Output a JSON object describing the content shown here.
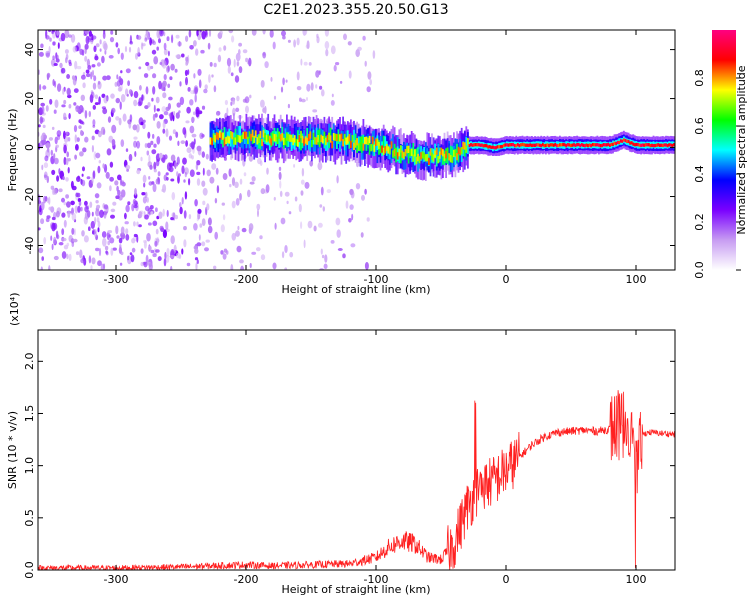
{
  "title": "C2E1.2023.355.20.50.G13",
  "chart_data": [
    {
      "type": "heatmap",
      "xlabel": "Height of straight line (km)",
      "ylabel": "Frequency (Hz)",
      "xlim": [
        -360,
        130
      ],
      "ylim": [
        -50,
        48
      ],
      "xticks": [
        -300,
        -200,
        -100,
        0,
        100
      ],
      "yticks": [
        -40,
        -20,
        0,
        20,
        40
      ],
      "colorbar": {
        "label": "Normalized spectral amplitude",
        "range": [
          0.0,
          1.0
        ],
        "ticks": [
          "0.0",
          "0.2",
          "0.4",
          "0.6",
          "0.8"
        ],
        "colors": [
          "#ffffff",
          "#c79cf2",
          "#7a00ff",
          "#0000ff",
          "#00ffff",
          "#00ff00",
          "#ffff00",
          "#ff0000",
          "#ff0080"
        ]
      },
      "ridge": {
        "x": [
          -228,
          -200,
          -160,
          -130,
          -110,
          -95,
          -80,
          -65,
          -50,
          -40,
          -30,
          -20,
          -10,
          0,
          20,
          50,
          80,
          90,
          100,
          130
        ],
        "y": [
          4,
          4,
          3.5,
          3,
          2,
          0,
          -2,
          -4,
          -3,
          -3,
          1,
          1,
          0,
          1,
          1,
          1,
          1,
          3,
          1,
          1
        ]
      },
      "noise_region_x": [
        -360,
        -100
      ]
    },
    {
      "type": "line",
      "xlabel": "Height of straight line (km)",
      "ylabel": "SNR (10 * v/v)",
      "y_multiplier": "(x10⁴)",
      "xlim": [
        -360,
        130
      ],
      "ylim": [
        0,
        2.3
      ],
      "xticks": [
        -300,
        -200,
        -100,
        0,
        100
      ],
      "yticks": [
        "0.0",
        "0.5",
        "1.0",
        "1.5",
        "2.0"
      ],
      "series": [
        {
          "color": "#ff2020",
          "x": [
            -360,
            -300,
            -250,
            -200,
            -180,
            -150,
            -120,
            -100,
            -90,
            -80,
            -70,
            -60,
            -50,
            -40,
            -30,
            -20,
            -10,
            0,
            10,
            20,
            30,
            40,
            50,
            60,
            70,
            80,
            90,
            95,
            100,
            105,
            110,
            120,
            130
          ],
          "y": [
            0.02,
            0.02,
            0.03,
            0.05,
            0.04,
            0.05,
            0.06,
            0.12,
            0.22,
            0.28,
            0.25,
            0.12,
            0.1,
            0.25,
            0.6,
            0.8,
            0.85,
            0.95,
            1.08,
            1.2,
            1.28,
            1.32,
            1.33,
            1.34,
            1.33,
            1.35,
            1.4,
            1.45,
            0.9,
            1.3,
            1.32,
            1.31,
            1.3
          ]
        }
      ]
    }
  ]
}
